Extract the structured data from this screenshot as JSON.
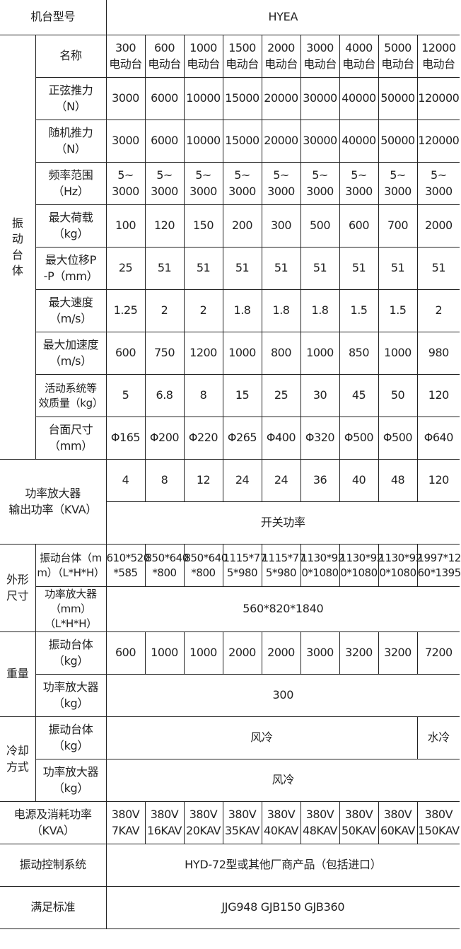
{
  "header": {
    "label": "机台型号",
    "model": "HYEA"
  },
  "shaker": {
    "group": "振\n动\n台\n体",
    "rows": [
      {
        "label": "名称",
        "values": [
          "300\n电动台",
          "600\n电动台",
          "1000\n电动台",
          "1500\n电动台",
          "2000\n电动台",
          "3000\n电动台",
          "4000\n电动台",
          "5000\n电动台",
          "12000\n电动台"
        ]
      },
      {
        "label": "正弦推力\n（N）",
        "values": [
          "3000",
          "6000",
          "10000",
          "15000",
          "20000",
          "30000",
          "40000",
          "50000",
          "120000"
        ]
      },
      {
        "label": "随机推力\n（N）",
        "values": [
          "3000",
          "6000",
          "10000",
          "15000",
          "20000",
          "30000",
          "40000",
          "50000",
          "120000"
        ]
      },
      {
        "label": "频率范围\n（Hz）",
        "values": [
          "5~\n3000",
          "5~\n3000",
          "5~\n3000",
          "5~\n3000",
          "5~\n3000",
          "5~\n3000",
          "5~\n3000",
          "5~\n3000",
          "5~\n3000"
        ]
      },
      {
        "label": "最大荷载\n（kg）",
        "values": [
          "100",
          "120",
          "150",
          "200",
          "300",
          "500",
          "600",
          "700",
          "2000"
        ]
      },
      {
        "label": "最大位移P\n-P（mm）",
        "values": [
          "25",
          "51",
          "51",
          "51",
          "51",
          "51",
          "51",
          "51",
          "51"
        ]
      },
      {
        "label": "最大速度\n（m/s）",
        "values": [
          "1.25",
          "2",
          "2",
          "1.8",
          "1.8",
          "1.8",
          "1.5",
          "1.5",
          "2"
        ]
      },
      {
        "label": "最大加速度\n（m/s）",
        "values": [
          "600",
          "750",
          "1200",
          "1000",
          "800",
          "1000",
          "850",
          "1000",
          "980"
        ]
      },
      {
        "label": "活动系统等\n效质量（kg）",
        "values": [
          "5",
          "6.8",
          "8",
          "15",
          "25",
          "30",
          "45",
          "50",
          "120"
        ]
      },
      {
        "label": "台面尺寸\n（mm）",
        "values": [
          "Φ165",
          "Φ200",
          "Φ220",
          "Φ265",
          "Φ400",
          "Φ320",
          "Φ500",
          "Φ500",
          "Φ640"
        ]
      }
    ]
  },
  "amplifier": {
    "label": "功率放大器\n输出功率（KVA）",
    "values": [
      "4",
      "8",
      "12",
      "24",
      "24",
      "36",
      "40",
      "48",
      "120"
    ],
    "type": "开关功率"
  },
  "dimensions": {
    "group": "外形\n尺寸",
    "shaker_label": "振动台体（m\nm）（L*H*H）",
    "shaker_values": [
      "610*520\n*585",
      "850*640\n*800",
      "850*640\n*800",
      "1115*77\n5*980",
      "1115*77\n5*980",
      "1130*92\n0*1080",
      "1130*92\n0*1080",
      "1130*92\n0*1080",
      "1997*12\n60*1395"
    ],
    "amp_label": "功率放大器\n（mm）（L*H*H）",
    "amp_value": "560*820*1840"
  },
  "weight": {
    "group": "重量",
    "shaker_label": "振动台体\n（kg）",
    "shaker_values": [
      "600",
      "1000",
      "1000",
      "2000",
      "2000",
      "3000",
      "3200",
      "3200",
      "7200"
    ],
    "amp_label": "功率放大器\n（kg）",
    "amp_value": "300"
  },
  "cooling": {
    "group": "冷却\n方式",
    "shaker_label": "振动台体\n（kg）",
    "shaker_value": "风冷",
    "shaker_value_last": "水冷",
    "amp_label": "功率放大器\n（kg）",
    "amp_value": "风冷"
  },
  "power": {
    "label": "电源及消耗功率\n（KVA）",
    "values": [
      "380V\n7KAV",
      "380V\n16KAV",
      "380V\n20KAV",
      "380V\n35KAV",
      "380V\n40KAV",
      "380V\n48KAV",
      "380V\n50KAV",
      "380V\n60KAV",
      "380V\n150KAV"
    ]
  },
  "control": {
    "label": "振动控制系统",
    "value": "HYD-72型或其他厂商产品（包括进口）"
  },
  "standard": {
    "label": "满足标准",
    "value": "JJG948 GJB150 GJB360"
  }
}
